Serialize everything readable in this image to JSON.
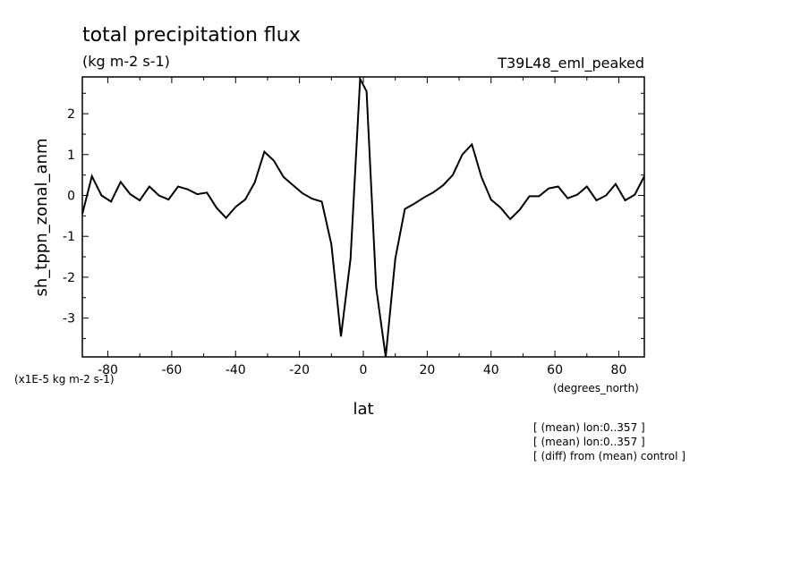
{
  "chart_data": {
    "type": "line",
    "title": "total precipitation flux",
    "units": "(kg m-2 s-1)",
    "run_label": "T39L48_eml_peaked",
    "xlabel": "lat",
    "ylabel": "sh_tppn_zonal_anm",
    "x_units": "(degrees_north)",
    "y_scale_note": "(x1E-5 kg m-2 s-1)",
    "xlim": [
      -88,
      88
    ],
    "ylim": [
      -3.95,
      2.9
    ],
    "x_ticks": [
      -80,
      -60,
      -40,
      -20,
      0,
      20,
      40,
      60,
      80
    ],
    "x_tick_labels": [
      "-80",
      "-60",
      "-40",
      "-20",
      "0",
      "20",
      "40",
      "60",
      "80"
    ],
    "y_ticks": [
      2,
      1,
      0,
      -1,
      -2,
      -3
    ],
    "y_tick_labels": [
      "2",
      "1",
      "0",
      "-1",
      "-2",
      "-3"
    ],
    "series": [
      {
        "x": [
          -88,
          -85,
          -82,
          -79,
          -76,
          -73,
          -70,
          -67,
          -64,
          -61,
          -58,
          -55,
          -52,
          -49,
          -46,
          -43,
          -40,
          -37,
          -34,
          -31,
          -28,
          -25,
          -22,
          -19,
          -16,
          -13,
          -10,
          -7,
          -4,
          -1,
          1,
          4,
          7,
          10,
          13,
          16,
          19,
          22,
          25,
          28,
          31,
          34,
          37,
          40,
          43,
          46,
          49,
          52,
          55,
          58,
          61,
          64,
          67,
          70,
          73,
          76,
          79,
          82,
          85,
          88
        ],
        "y": [
          -0.45,
          0.47,
          0.0,
          -0.15,
          0.33,
          0.03,
          -0.12,
          0.22,
          0.0,
          -0.1,
          0.22,
          0.15,
          0.03,
          0.07,
          -0.3,
          -0.55,
          -0.28,
          -0.1,
          0.32,
          1.07,
          0.85,
          0.45,
          0.25,
          0.05,
          -0.08,
          -0.15,
          -1.2,
          -3.45,
          -1.55,
          2.85,
          2.55,
          -2.25,
          -3.95,
          -1.55,
          -0.33,
          -0.2,
          -0.05,
          0.08,
          0.25,
          0.5,
          1.0,
          1.25,
          0.45,
          -0.1,
          -0.3,
          -0.58,
          -0.35,
          -0.02,
          -0.02,
          0.17,
          0.22,
          -0.07,
          0.02,
          0.22,
          -0.12,
          0.0,
          0.28,
          -0.12,
          0.02,
          0.47
        ]
      }
    ],
    "grid": false,
    "notes": [
      "[ (mean) lon:0..357 ]",
      "[ (mean) lon:0..357 ]",
      "[ (diff) from (mean) control ]"
    ],
    "line_color": "#000000"
  }
}
